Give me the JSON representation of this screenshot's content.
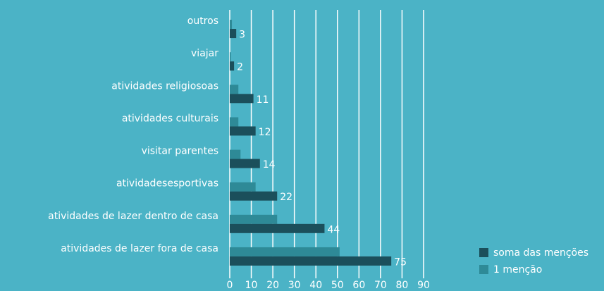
{
  "chart_data": {
    "type": "barh",
    "categories": [
      "outros",
      "viajar",
      "atividades religiosoas",
      "atividades culturais",
      "visitar parentes",
      "atividadesesportivas",
      "atividades de lazer dentro de casa",
      "atividades de lazer fora de casa"
    ],
    "series": [
      {
        "name": "soma das menções",
        "color": "#1b4f5b",
        "values": [
          3,
          2,
          11,
          12,
          14,
          22,
          44,
          75
        ]
      },
      {
        "name": "1 menção",
        "color": "#2e8a97",
        "values": [
          1,
          0.5,
          4,
          4,
          5,
          12,
          22,
          51
        ]
      }
    ],
    "xlim": [
      0,
      90
    ],
    "xticks": [
      0,
      10,
      20,
      30,
      40,
      50,
      60,
      70,
      80,
      90
    ],
    "grid": true
  }
}
